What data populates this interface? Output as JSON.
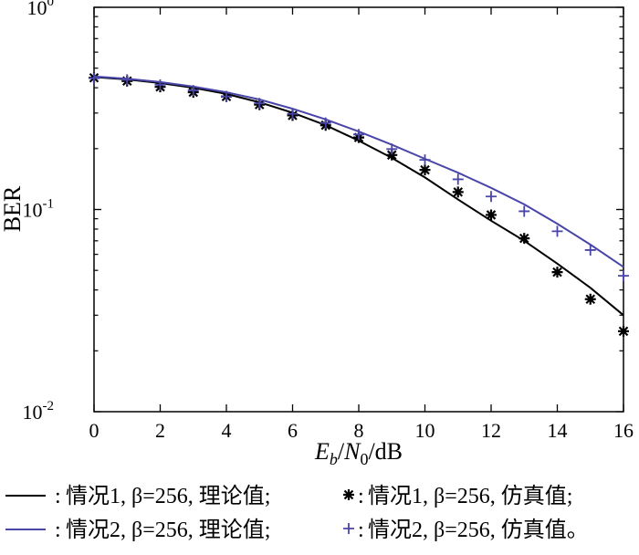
{
  "chart_data": {
    "type": "line",
    "yscale": "log",
    "xlim": [
      0,
      16
    ],
    "ylim": [
      0.01,
      1
    ],
    "xticks": [
      "0",
      "2",
      "4",
      "6",
      "8",
      "10",
      "12",
      "14",
      "16"
    ],
    "yticks": [
      {
        "base": "10",
        "exp": "0",
        "value": 1
      },
      {
        "base": "10",
        "exp": "-1",
        "value": 0.1
      },
      {
        "base": "10",
        "exp": "-2",
        "value": 0.01
      }
    ],
    "ylabel": "BER",
    "xlabel": {
      "e": "E",
      "e_sub": "b",
      "sep": "/",
      "n": "N",
      "n_sub": "0",
      "unit": "/dB"
    },
    "grid": false,
    "legend_location": "below",
    "series": [
      {
        "name": "情况1, β=256, 理论值",
        "style": "line",
        "color": "#000000",
        "x": [
          0,
          1,
          2,
          3,
          4,
          5,
          6,
          7,
          8,
          9,
          10,
          11,
          12,
          13,
          14,
          15,
          16
        ],
        "y": [
          0.452,
          0.44,
          0.422,
          0.4,
          0.373,
          0.339,
          0.301,
          0.261,
          0.219,
          0.18,
          0.144,
          0.112,
          0.088,
          0.07,
          0.054,
          0.041,
          0.03
        ]
      },
      {
        "name": "情况1, β=256, 仿真值",
        "style": "marker",
        "marker": "asterisk",
        "color": "#000000",
        "x": [
          0,
          1,
          2,
          3,
          4,
          5,
          6,
          7,
          8,
          9,
          10,
          11,
          12,
          13,
          14,
          15,
          16
        ],
        "y": [
          0.448,
          0.432,
          0.404,
          0.38,
          0.362,
          0.33,
          0.292,
          0.261,
          0.227,
          0.186,
          0.157,
          0.122,
          0.094,
          0.072,
          0.049,
          0.036,
          0.025
        ]
      },
      {
        "name": "情况2, β=256, 理论值",
        "style": "line",
        "color": "#4a46a8",
        "x": [
          0,
          1,
          2,
          3,
          4,
          5,
          6,
          7,
          8,
          9,
          10,
          11,
          12,
          13,
          14,
          15,
          16
        ],
        "y": [
          0.455,
          0.443,
          0.427,
          0.405,
          0.38,
          0.35,
          0.315,
          0.279,
          0.243,
          0.209,
          0.178,
          0.152,
          0.128,
          0.106,
          0.085,
          0.067,
          0.052
        ]
      },
      {
        "name": "情况2, β=256, 仿真值",
        "style": "marker",
        "marker": "plus",
        "color": "#4a46a8",
        "x": [
          0,
          1,
          2,
          3,
          4,
          5,
          6,
          7,
          8,
          9,
          10,
          11,
          12,
          13,
          14,
          15,
          16
        ],
        "y": [
          0.446,
          0.438,
          0.414,
          0.388,
          0.362,
          0.335,
          0.297,
          0.268,
          0.235,
          0.199,
          0.176,
          0.141,
          0.116,
          0.098,
          0.078,
          0.063,
          0.047
        ]
      }
    ]
  },
  "legend": {
    "colon": ":",
    "rows": [
      {
        "entries": [
          {
            "series": 0,
            "label": "情况1, β=256, 理论值;"
          },
          {
            "series": 1,
            "label": "情况1, β=256, 仿真值;"
          }
        ]
      },
      {
        "entries": [
          {
            "series": 2,
            "label": "情况2, β=256, 理论值;"
          },
          {
            "series": 3,
            "label": "情况2, β=256, 仿真值。"
          }
        ]
      }
    ]
  }
}
